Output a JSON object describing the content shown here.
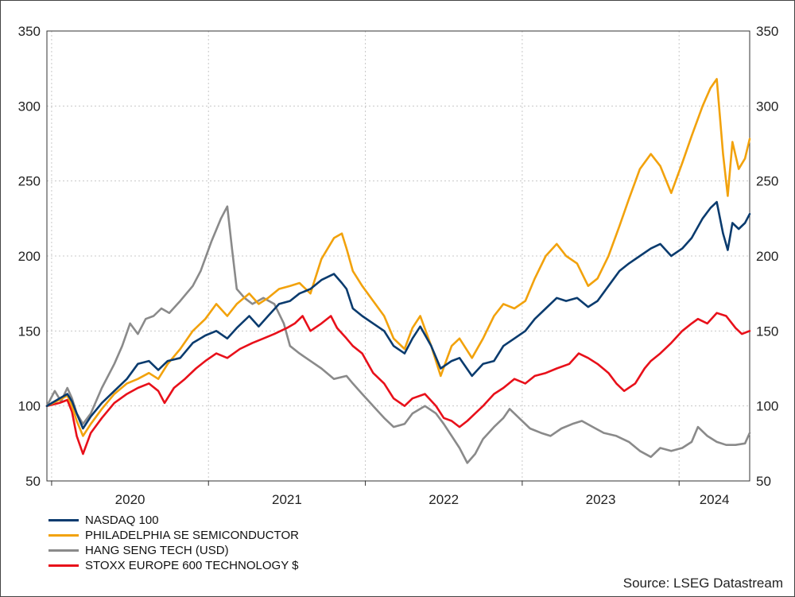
{
  "chart_data": {
    "type": "line",
    "source": "Source: LSEG Datastream",
    "ylim": [
      50,
      350
    ],
    "y_ticks": [
      50,
      100,
      150,
      200,
      250,
      300,
      350
    ],
    "x_range": [
      2019.97,
      2024.45
    ],
    "year_labels": [
      "2020",
      "2021",
      "2022",
      "2023",
      "2024"
    ],
    "grid": true,
    "legend_position": "bottom-left",
    "series": [
      {
        "name": "NASDAQ 100",
        "color": "#0a3b6e",
        "points": [
          [
            2019.97,
            100
          ],
          [
            2020.05,
            105
          ],
          [
            2020.1,
            108
          ],
          [
            2020.13,
            103
          ],
          [
            2020.16,
            95
          ],
          [
            2020.2,
            85
          ],
          [
            2020.25,
            93
          ],
          [
            2020.32,
            102
          ],
          [
            2020.4,
            110
          ],
          [
            2020.48,
            118
          ],
          [
            2020.55,
            128
          ],
          [
            2020.62,
            130
          ],
          [
            2020.68,
            124
          ],
          [
            2020.74,
            130
          ],
          [
            2020.82,
            132
          ],
          [
            2020.9,
            142
          ],
          [
            2020.98,
            147
          ],
          [
            2021.05,
            150
          ],
          [
            2021.12,
            145
          ],
          [
            2021.18,
            152
          ],
          [
            2021.26,
            160
          ],
          [
            2021.32,
            153
          ],
          [
            2021.38,
            160
          ],
          [
            2021.45,
            168
          ],
          [
            2021.52,
            170
          ],
          [
            2021.58,
            175
          ],
          [
            2021.65,
            178
          ],
          [
            2021.72,
            184
          ],
          [
            2021.8,
            188
          ],
          [
            2021.85,
            182
          ],
          [
            2021.88,
            178
          ],
          [
            2021.92,
            165
          ],
          [
            2021.98,
            160
          ],
          [
            2022.05,
            155
          ],
          [
            2022.12,
            150
          ],
          [
            2022.18,
            140
          ],
          [
            2022.25,
            135
          ],
          [
            2022.3,
            145
          ],
          [
            2022.35,
            153
          ],
          [
            2022.42,
            140
          ],
          [
            2022.48,
            125
          ],
          [
            2022.55,
            130
          ],
          [
            2022.6,
            132
          ],
          [
            2022.68,
            120
          ],
          [
            2022.75,
            128
          ],
          [
            2022.82,
            130
          ],
          [
            2022.88,
            140
          ],
          [
            2022.95,
            145
          ],
          [
            2023.02,
            150
          ],
          [
            2023.08,
            158
          ],
          [
            2023.15,
            165
          ],
          [
            2023.22,
            172
          ],
          [
            2023.28,
            170
          ],
          [
            2023.35,
            172
          ],
          [
            2023.42,
            166
          ],
          [
            2023.48,
            170
          ],
          [
            2023.55,
            180
          ],
          [
            2023.62,
            190
          ],
          [
            2023.68,
            195
          ],
          [
            2023.75,
            200
          ],
          [
            2023.82,
            205
          ],
          [
            2023.88,
            208
          ],
          [
            2023.95,
            200
          ],
          [
            2024.02,
            205
          ],
          [
            2024.08,
            212
          ],
          [
            2024.15,
            225
          ],
          [
            2024.2,
            232
          ],
          [
            2024.24,
            236
          ],
          [
            2024.28,
            215
          ],
          [
            2024.31,
            204
          ],
          [
            2024.34,
            222
          ],
          [
            2024.38,
            218
          ],
          [
            2024.42,
            222
          ],
          [
            2024.45,
            228
          ]
        ]
      },
      {
        "name": "PHILADELPHIA SE SEMICONDUCTOR",
        "color": "#f2a20c",
        "points": [
          [
            2019.97,
            100
          ],
          [
            2020.05,
            104
          ],
          [
            2020.1,
            107
          ],
          [
            2020.13,
            100
          ],
          [
            2020.16,
            90
          ],
          [
            2020.2,
            80
          ],
          [
            2020.25,
            88
          ],
          [
            2020.32,
            98
          ],
          [
            2020.4,
            108
          ],
          [
            2020.48,
            115
          ],
          [
            2020.55,
            118
          ],
          [
            2020.62,
            122
          ],
          [
            2020.68,
            118
          ],
          [
            2020.74,
            128
          ],
          [
            2020.82,
            138
          ],
          [
            2020.9,
            150
          ],
          [
            2020.98,
            158
          ],
          [
            2021.05,
            168
          ],
          [
            2021.12,
            160
          ],
          [
            2021.18,
            168
          ],
          [
            2021.26,
            175
          ],
          [
            2021.32,
            168
          ],
          [
            2021.38,
            172
          ],
          [
            2021.45,
            178
          ],
          [
            2021.52,
            180
          ],
          [
            2021.58,
            182
          ],
          [
            2021.65,
            175
          ],
          [
            2021.72,
            198
          ],
          [
            2021.8,
            212
          ],
          [
            2021.85,
            215
          ],
          [
            2021.88,
            205
          ],
          [
            2021.92,
            190
          ],
          [
            2021.98,
            180
          ],
          [
            2022.05,
            170
          ],
          [
            2022.12,
            160
          ],
          [
            2022.18,
            145
          ],
          [
            2022.25,
            138
          ],
          [
            2022.3,
            152
          ],
          [
            2022.35,
            160
          ],
          [
            2022.42,
            140
          ],
          [
            2022.48,
            120
          ],
          [
            2022.55,
            140
          ],
          [
            2022.6,
            145
          ],
          [
            2022.68,
            132
          ],
          [
            2022.75,
            145
          ],
          [
            2022.82,
            160
          ],
          [
            2022.88,
            168
          ],
          [
            2022.95,
            165
          ],
          [
            2023.02,
            170
          ],
          [
            2023.08,
            185
          ],
          [
            2023.15,
            200
          ],
          [
            2023.22,
            208
          ],
          [
            2023.28,
            200
          ],
          [
            2023.35,
            195
          ],
          [
            2023.42,
            180
          ],
          [
            2023.48,
            185
          ],
          [
            2023.55,
            200
          ],
          [
            2023.62,
            220
          ],
          [
            2023.68,
            238
          ],
          [
            2023.75,
            258
          ],
          [
            2023.82,
            268
          ],
          [
            2023.88,
            260
          ],
          [
            2023.95,
            242
          ],
          [
            2024.02,
            262
          ],
          [
            2024.08,
            280
          ],
          [
            2024.15,
            300
          ],
          [
            2024.2,
            312
          ],
          [
            2024.24,
            318
          ],
          [
            2024.28,
            268
          ],
          [
            2024.31,
            240
          ],
          [
            2024.34,
            276
          ],
          [
            2024.38,
            258
          ],
          [
            2024.42,
            265
          ],
          [
            2024.45,
            278
          ]
        ]
      },
      {
        "name": "HANG SENG TECH (USD)",
        "color": "#8a8a8a",
        "points": [
          [
            2019.97,
            100
          ],
          [
            2020.02,
            110
          ],
          [
            2020.06,
            103
          ],
          [
            2020.1,
            112
          ],
          [
            2020.13,
            105
          ],
          [
            2020.16,
            95
          ],
          [
            2020.2,
            88
          ],
          [
            2020.25,
            95
          ],
          [
            2020.32,
            112
          ],
          [
            2020.4,
            128
          ],
          [
            2020.45,
            140
          ],
          [
            2020.5,
            155
          ],
          [
            2020.55,
            148
          ],
          [
            2020.6,
            158
          ],
          [
            2020.65,
            160
          ],
          [
            2020.7,
            165
          ],
          [
            2020.75,
            162
          ],
          [
            2020.82,
            170
          ],
          [
            2020.9,
            180
          ],
          [
            2020.95,
            190
          ],
          [
            2021.02,
            210
          ],
          [
            2021.08,
            225
          ],
          [
            2021.12,
            233
          ],
          [
            2021.15,
            205
          ],
          [
            2021.18,
            178
          ],
          [
            2021.23,
            172
          ],
          [
            2021.28,
            168
          ],
          [
            2021.35,
            172
          ],
          [
            2021.42,
            168
          ],
          [
            2021.48,
            155
          ],
          [
            2021.52,
            140
          ],
          [
            2021.58,
            135
          ],
          [
            2021.65,
            130
          ],
          [
            2021.72,
            125
          ],
          [
            2021.8,
            118
          ],
          [
            2021.88,
            120
          ],
          [
            2021.92,
            115
          ],
          [
            2021.98,
            108
          ],
          [
            2022.05,
            100
          ],
          [
            2022.12,
            92
          ],
          [
            2022.18,
            86
          ],
          [
            2022.25,
            88
          ],
          [
            2022.3,
            95
          ],
          [
            2022.38,
            100
          ],
          [
            2022.45,
            95
          ],
          [
            2022.5,
            88
          ],
          [
            2022.55,
            80
          ],
          [
            2022.6,
            72
          ],
          [
            2022.65,
            62
          ],
          [
            2022.7,
            68
          ],
          [
            2022.75,
            78
          ],
          [
            2022.82,
            86
          ],
          [
            2022.88,
            92
          ],
          [
            2022.92,
            98
          ],
          [
            2022.98,
            92
          ],
          [
            2023.05,
            85
          ],
          [
            2023.12,
            82
          ],
          [
            2023.18,
            80
          ],
          [
            2023.25,
            85
          ],
          [
            2023.32,
            88
          ],
          [
            2023.38,
            90
          ],
          [
            2023.45,
            86
          ],
          [
            2023.52,
            82
          ],
          [
            2023.6,
            80
          ],
          [
            2023.68,
            76
          ],
          [
            2023.75,
            70
          ],
          [
            2023.82,
            66
          ],
          [
            2023.88,
            72
          ],
          [
            2023.95,
            70
          ],
          [
            2024.02,
            72
          ],
          [
            2024.08,
            76
          ],
          [
            2024.12,
            86
          ],
          [
            2024.18,
            80
          ],
          [
            2024.24,
            76
          ],
          [
            2024.3,
            74
          ],
          [
            2024.36,
            74
          ],
          [
            2024.42,
            75
          ],
          [
            2024.45,
            82
          ]
        ]
      },
      {
        "name": "STOXX EUROPE 600 TECHNOLOGY $",
        "color": "#e8101a",
        "points": [
          [
            2019.97,
            100
          ],
          [
            2020.05,
            102
          ],
          [
            2020.1,
            104
          ],
          [
            2020.13,
            96
          ],
          [
            2020.16,
            80
          ],
          [
            2020.2,
            68
          ],
          [
            2020.25,
            82
          ],
          [
            2020.32,
            92
          ],
          [
            2020.4,
            102
          ],
          [
            2020.48,
            108
          ],
          [
            2020.55,
            112
          ],
          [
            2020.62,
            115
          ],
          [
            2020.68,
            110
          ],
          [
            2020.72,
            102
          ],
          [
            2020.78,
            112
          ],
          [
            2020.85,
            118
          ],
          [
            2020.92,
            125
          ],
          [
            2020.98,
            130
          ],
          [
            2021.05,
            135
          ],
          [
            2021.12,
            132
          ],
          [
            2021.2,
            138
          ],
          [
            2021.28,
            142
          ],
          [
            2021.35,
            145
          ],
          [
            2021.42,
            148
          ],
          [
            2021.5,
            152
          ],
          [
            2021.55,
            155
          ],
          [
            2021.6,
            160
          ],
          [
            2021.65,
            150
          ],
          [
            2021.72,
            155
          ],
          [
            2021.78,
            160
          ],
          [
            2021.82,
            152
          ],
          [
            2021.88,
            145
          ],
          [
            2021.92,
            140
          ],
          [
            2021.98,
            135
          ],
          [
            2022.05,
            122
          ],
          [
            2022.12,
            115
          ],
          [
            2022.18,
            105
          ],
          [
            2022.25,
            100
          ],
          [
            2022.3,
            105
          ],
          [
            2022.38,
            108
          ],
          [
            2022.45,
            100
          ],
          [
            2022.5,
            92
          ],
          [
            2022.55,
            90
          ],
          [
            2022.6,
            86
          ],
          [
            2022.65,
            90
          ],
          [
            2022.7,
            95
          ],
          [
            2022.75,
            100
          ],
          [
            2022.82,
            108
          ],
          [
            2022.88,
            112
          ],
          [
            2022.95,
            118
          ],
          [
            2023.02,
            115
          ],
          [
            2023.08,
            120
          ],
          [
            2023.15,
            122
          ],
          [
            2023.22,
            125
          ],
          [
            2023.3,
            128
          ],
          [
            2023.36,
            135
          ],
          [
            2023.42,
            132
          ],
          [
            2023.48,
            128
          ],
          [
            2023.55,
            122
          ],
          [
            2023.6,
            115
          ],
          [
            2023.65,
            110
          ],
          [
            2023.72,
            115
          ],
          [
            2023.78,
            125
          ],
          [
            2023.82,
            130
          ],
          [
            2023.88,
            135
          ],
          [
            2023.95,
            142
          ],
          [
            2024.02,
            150
          ],
          [
            2024.08,
            155
          ],
          [
            2024.12,
            158
          ],
          [
            2024.18,
            155
          ],
          [
            2024.24,
            162
          ],
          [
            2024.3,
            160
          ],
          [
            2024.36,
            152
          ],
          [
            2024.4,
            148
          ],
          [
            2024.45,
            150
          ]
        ]
      }
    ]
  }
}
